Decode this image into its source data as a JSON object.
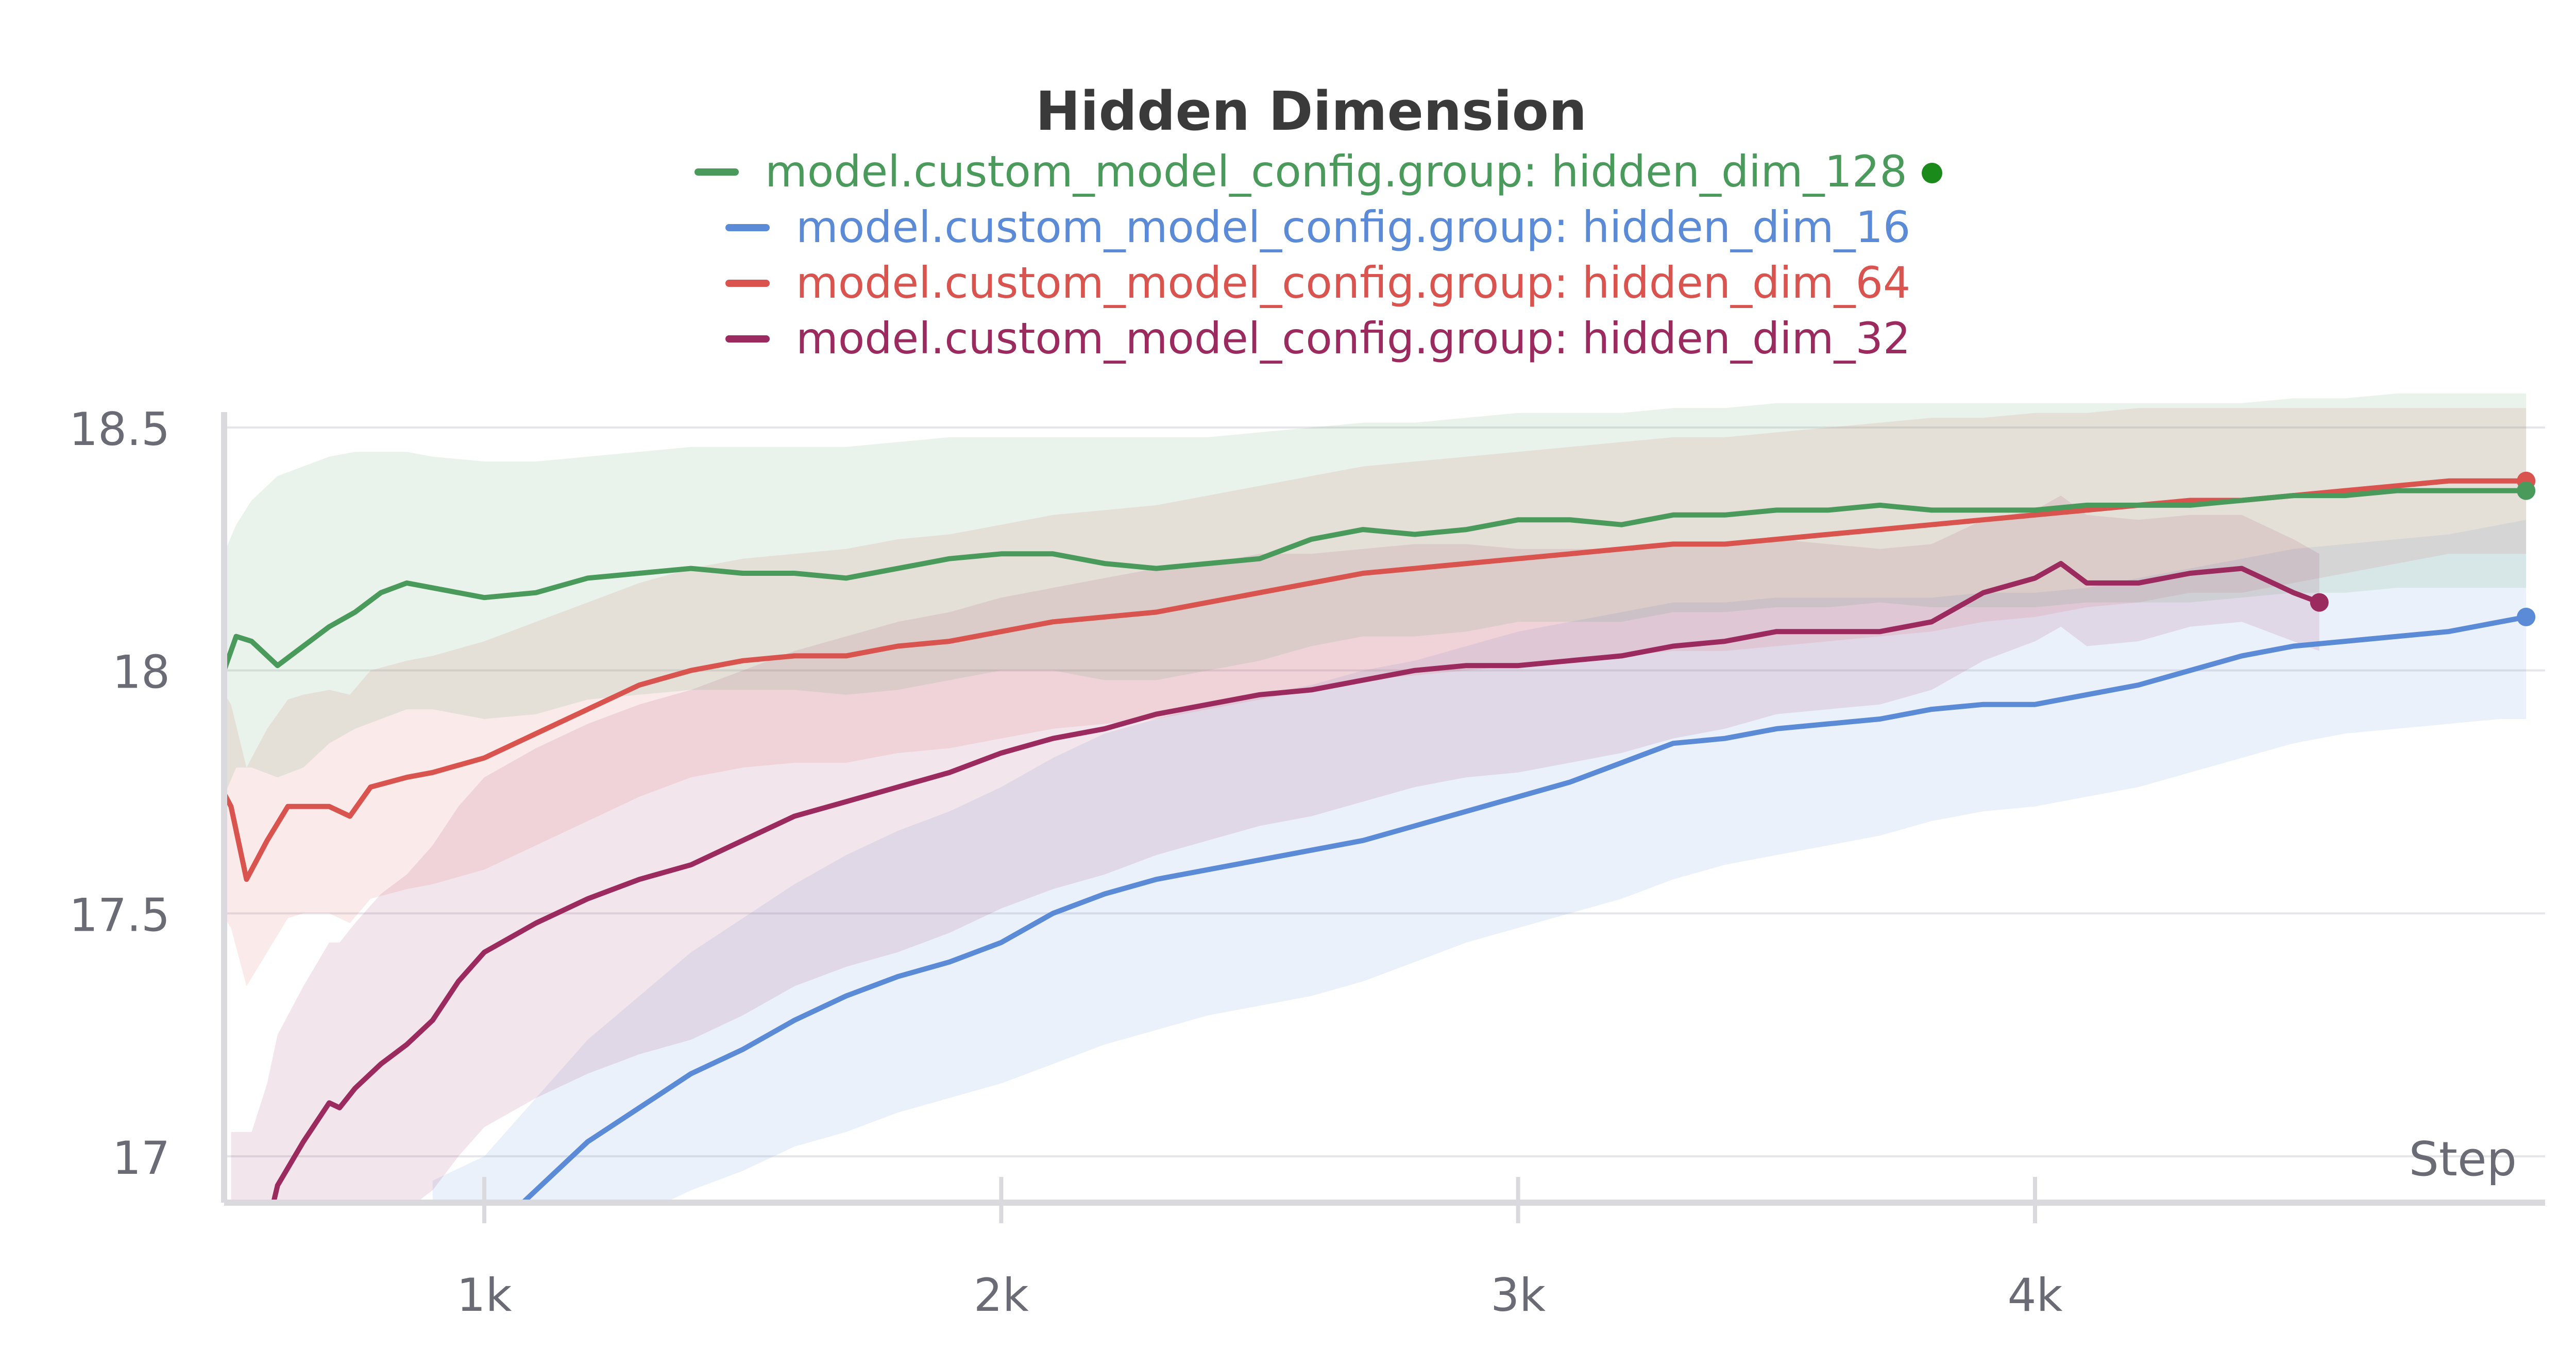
{
  "chart_data": {
    "type": "line",
    "title": "Hidden Dimension",
    "xlabel": "Step",
    "ylabel": "",
    "xlim": [
      500,
      4950
    ],
    "ylim": [
      16.9,
      18.55
    ],
    "x_ticks": [
      1000,
      2000,
      3000,
      4000
    ],
    "x_tick_labels": [
      "1k",
      "2k",
      "3k",
      "4k"
    ],
    "y_ticks": [
      17,
      17.5,
      18,
      18.5
    ],
    "y_tick_labels": [
      "17",
      "17.5",
      "18",
      "18.5"
    ],
    "grid": true,
    "legend_position": "top-center",
    "series": [
      {
        "name": "model.custom_model_config.group: hidden_dim_128",
        "color": "#4a9a5c",
        "highlighted": true,
        "x": [
          450,
          480,
          520,
          550,
          600,
          650,
          700,
          750,
          800,
          850,
          900,
          1000,
          1100,
          1200,
          1300,
          1400,
          1500,
          1600,
          1700,
          1800,
          1900,
          2000,
          2100,
          2200,
          2300,
          2400,
          2500,
          2600,
          2700,
          2800,
          2900,
          3000,
          3100,
          3200,
          3300,
          3400,
          3500,
          3600,
          3700,
          3800,
          3900,
          4000,
          4100,
          4200,
          4300,
          4400,
          4500,
          4600,
          4700,
          4800,
          4900,
          4950
        ],
        "y": [
          17.85,
          17.95,
          18.07,
          18.06,
          18.01,
          18.05,
          18.09,
          18.12,
          18.16,
          18.18,
          18.17,
          18.15,
          18.16,
          18.19,
          18.2,
          18.21,
          18.2,
          18.2,
          18.19,
          18.21,
          18.23,
          18.24,
          18.24,
          18.22,
          18.21,
          18.22,
          18.23,
          18.27,
          18.29,
          18.28,
          18.29,
          18.31,
          18.31,
          18.3,
          18.32,
          18.32,
          18.33,
          18.33,
          18.34,
          18.33,
          18.33,
          18.33,
          18.34,
          18.34,
          18.34,
          18.35,
          18.36,
          18.36,
          18.37,
          18.37,
          18.37,
          18.37
        ],
        "band_upper": [
          18.1,
          18.2,
          18.3,
          18.35,
          18.4,
          18.42,
          18.44,
          18.45,
          18.45,
          18.45,
          18.44,
          18.43,
          18.43,
          18.44,
          18.45,
          18.46,
          18.46,
          18.46,
          18.46,
          18.47,
          18.48,
          18.48,
          18.48,
          18.48,
          18.48,
          18.48,
          18.49,
          18.5,
          18.51,
          18.51,
          18.52,
          18.53,
          18.53,
          18.53,
          18.54,
          18.54,
          18.55,
          18.55,
          18.55,
          18.55,
          18.55,
          18.55,
          18.55,
          18.55,
          18.55,
          18.55,
          18.56,
          18.56,
          18.57,
          18.57,
          18.57,
          18.57
        ],
        "band_lower": [
          17.6,
          17.7,
          17.8,
          17.8,
          17.78,
          17.8,
          17.85,
          17.88,
          17.9,
          17.92,
          17.92,
          17.9,
          17.91,
          17.94,
          17.95,
          17.96,
          17.96,
          17.96,
          17.95,
          17.96,
          17.98,
          18.0,
          18.0,
          17.98,
          17.98,
          18.0,
          18.02,
          18.05,
          18.07,
          18.07,
          18.08,
          18.1,
          18.1,
          18.1,
          18.12,
          18.12,
          18.13,
          18.13,
          18.14,
          18.13,
          18.13,
          18.13,
          18.14,
          18.14,
          18.14,
          18.15,
          18.16,
          18.16,
          18.17,
          18.17,
          18.17,
          18.17
        ]
      },
      {
        "name": "model.custom_model_config.group: hidden_dim_16",
        "color": "#5b8bd6",
        "highlighted": false,
        "x": [
          900,
          1000,
          1050,
          1100,
          1150,
          1200,
          1300,
          1400,
          1500,
          1600,
          1700,
          1800,
          1900,
          2000,
          2100,
          2200,
          2300,
          2400,
          2500,
          2600,
          2700,
          2800,
          2900,
          3000,
          3100,
          3200,
          3300,
          3400,
          3500,
          3600,
          3700,
          3800,
          3900,
          4000,
          4100,
          4200,
          4300,
          4400,
          4500,
          4600,
          4700,
          4800,
          4900,
          4950
        ],
        "y": [
          16.78,
          16.83,
          16.88,
          16.93,
          16.98,
          17.03,
          17.1,
          17.17,
          17.22,
          17.28,
          17.33,
          17.37,
          17.4,
          17.44,
          17.5,
          17.54,
          17.57,
          17.59,
          17.61,
          17.63,
          17.65,
          17.68,
          17.71,
          17.74,
          17.77,
          17.81,
          17.85,
          17.86,
          17.88,
          17.89,
          17.9,
          17.92,
          17.93,
          17.93,
          17.95,
          17.97,
          18.0,
          18.03,
          18.05,
          18.06,
          18.07,
          18.08,
          18.1,
          18.11
        ],
        "band_upper": [
          16.95,
          17.0,
          17.06,
          17.12,
          17.18,
          17.24,
          17.33,
          17.42,
          17.49,
          17.56,
          17.62,
          17.67,
          17.71,
          17.76,
          17.82,
          17.87,
          17.9,
          17.93,
          17.95,
          17.97,
          18.0,
          18.02,
          18.05,
          18.08,
          18.1,
          18.12,
          18.14,
          18.14,
          18.15,
          18.15,
          18.15,
          18.15,
          18.16,
          18.16,
          18.17,
          18.19,
          18.21,
          18.23,
          18.25,
          18.26,
          18.27,
          18.28,
          18.3,
          18.31
        ],
        "band_lower": [
          16.6,
          16.65,
          16.7,
          16.74,
          16.78,
          16.82,
          16.88,
          16.93,
          16.97,
          17.02,
          17.05,
          17.09,
          17.12,
          17.15,
          17.19,
          17.23,
          17.26,
          17.29,
          17.31,
          17.33,
          17.36,
          17.4,
          17.44,
          17.47,
          17.5,
          17.53,
          17.57,
          17.6,
          17.62,
          17.64,
          17.66,
          17.69,
          17.71,
          17.72,
          17.74,
          17.76,
          17.79,
          17.82,
          17.85,
          17.87,
          17.88,
          17.89,
          17.9,
          17.9
        ]
      },
      {
        "name": "model.custom_model_config.group: hidden_dim_64",
        "color": "#d9534f",
        "highlighted": false,
        "x": [
          450,
          480,
          510,
          540,
          580,
          620,
          650,
          700,
          740,
          780,
          850,
          900,
          1000,
          1100,
          1200,
          1300,
          1400,
          1500,
          1600,
          1700,
          1800,
          1900,
          2000,
          2100,
          2200,
          2300,
          2400,
          2500,
          2600,
          2700,
          2800,
          2900,
          3000,
          3100,
          3200,
          3300,
          3400,
          3500,
          3600,
          3700,
          3800,
          3900,
          4000,
          4100,
          4200,
          4300,
          4400,
          4500,
          4600,
          4700,
          4800,
          4900,
          4950
        ],
        "y": [
          17.75,
          17.78,
          17.72,
          17.57,
          17.65,
          17.72,
          17.72,
          17.72,
          17.7,
          17.76,
          17.78,
          17.79,
          17.82,
          17.87,
          17.92,
          17.97,
          18.0,
          18.02,
          18.03,
          18.03,
          18.05,
          18.06,
          18.08,
          18.1,
          18.11,
          18.12,
          18.14,
          18.16,
          18.18,
          18.2,
          18.21,
          18.22,
          18.23,
          18.24,
          18.25,
          18.26,
          18.26,
          18.27,
          18.28,
          18.29,
          18.3,
          18.31,
          18.32,
          18.33,
          18.34,
          18.35,
          18.35,
          18.36,
          18.37,
          18.38,
          18.39,
          18.39,
          18.39
        ],
        "band_upper": [
          17.95,
          17.98,
          17.93,
          17.8,
          17.88,
          17.94,
          17.95,
          17.96,
          17.95,
          18.0,
          18.02,
          18.03,
          18.06,
          18.1,
          18.14,
          18.18,
          18.21,
          18.23,
          18.24,
          18.25,
          18.27,
          18.28,
          18.3,
          18.32,
          18.33,
          18.34,
          18.36,
          18.38,
          18.4,
          18.42,
          18.43,
          18.44,
          18.45,
          18.46,
          18.47,
          18.48,
          18.48,
          18.49,
          18.5,
          18.51,
          18.52,
          18.52,
          18.53,
          18.53,
          18.54,
          18.54,
          18.54,
          18.54,
          18.54,
          18.54,
          18.54,
          18.54,
          18.54
        ],
        "band_lower": [
          17.5,
          17.52,
          17.47,
          17.35,
          17.42,
          17.49,
          17.5,
          17.5,
          17.48,
          17.53,
          17.55,
          17.56,
          17.59,
          17.64,
          17.69,
          17.74,
          17.78,
          17.8,
          17.81,
          17.81,
          17.83,
          17.84,
          17.86,
          17.88,
          17.89,
          17.9,
          17.92,
          17.94,
          17.96,
          17.98,
          17.99,
          18.0,
          18.01,
          18.02,
          18.03,
          18.04,
          18.04,
          18.05,
          18.06,
          18.07,
          18.08,
          18.1,
          18.11,
          18.13,
          18.14,
          18.16,
          18.16,
          18.18,
          18.2,
          18.22,
          18.24,
          18.24,
          18.24
        ]
      },
      {
        "name": "model.custom_model_config.group: hidden_dim_32",
        "color": "#9b2a5f",
        "highlighted": false,
        "x": [
          510,
          550,
          580,
          600,
          650,
          700,
          720,
          750,
          800,
          850,
          900,
          950,
          1000,
          1050,
          1100,
          1200,
          1300,
          1400,
          1500,
          1600,
          1700,
          1800,
          1900,
          2000,
          2100,
          2200,
          2300,
          2400,
          2500,
          2600,
          2700,
          2800,
          2900,
          3000,
          3100,
          3200,
          3300,
          3400,
          3500,
          3600,
          3700,
          3800,
          3900,
          4000,
          4050,
          4100,
          4200,
          4300,
          4400,
          4500,
          4550
        ],
        "y": [
          16.77,
          16.78,
          16.85,
          16.94,
          17.03,
          17.11,
          17.1,
          17.14,
          17.19,
          17.23,
          17.28,
          17.36,
          17.42,
          17.45,
          17.48,
          17.53,
          17.57,
          17.6,
          17.65,
          17.7,
          17.73,
          17.76,
          17.79,
          17.83,
          17.86,
          17.88,
          17.91,
          17.93,
          17.95,
          17.96,
          17.98,
          18.0,
          18.01,
          18.01,
          18.02,
          18.03,
          18.05,
          18.06,
          18.08,
          18.08,
          18.08,
          18.1,
          18.16,
          18.19,
          18.22,
          18.18,
          18.18,
          18.2,
          18.21,
          18.16,
          18.14
        ],
        "band_upper": [
          17.05,
          17.05,
          17.15,
          17.25,
          17.35,
          17.44,
          17.44,
          17.48,
          17.54,
          17.58,
          17.64,
          17.72,
          17.78,
          17.81,
          17.84,
          17.89,
          17.93,
          17.96,
          18.0,
          18.04,
          18.07,
          18.1,
          18.12,
          18.15,
          18.17,
          18.19,
          18.21,
          18.22,
          18.24,
          18.24,
          18.25,
          18.26,
          18.26,
          18.25,
          18.25,
          18.25,
          18.26,
          18.26,
          18.27,
          18.26,
          18.25,
          18.26,
          18.31,
          18.33,
          18.36,
          18.32,
          18.31,
          18.32,
          18.32,
          18.27,
          18.24
        ],
        "band_lower": [
          16.5,
          16.5,
          16.56,
          16.64,
          16.72,
          16.79,
          16.78,
          16.81,
          16.85,
          16.89,
          16.93,
          17.0,
          17.06,
          17.09,
          17.12,
          17.17,
          17.21,
          17.24,
          17.29,
          17.35,
          17.39,
          17.42,
          17.46,
          17.51,
          17.55,
          17.58,
          17.62,
          17.65,
          17.68,
          17.7,
          17.73,
          17.76,
          17.78,
          17.79,
          17.81,
          17.83,
          17.86,
          17.88,
          17.91,
          17.92,
          17.93,
          17.96,
          18.02,
          18.06,
          18.09,
          18.05,
          18.06,
          18.09,
          18.1,
          18.06,
          18.04
        ]
      }
    ]
  }
}
